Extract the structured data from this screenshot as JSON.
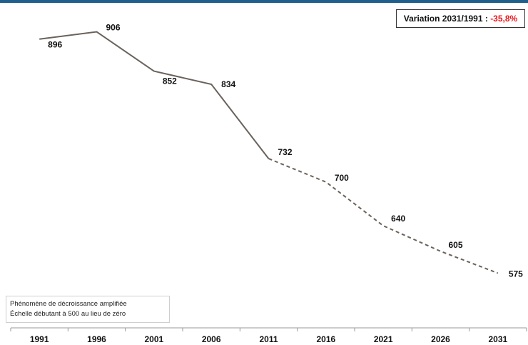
{
  "variation": {
    "label": "Variation 2031/1991 :",
    "value": "-35,8%",
    "value_color": "#e8161b"
  },
  "note": {
    "line1": "Phénomène de décroissance amplifiée",
    "line2": "Échelle débutant à 500 au lieu de zéro"
  },
  "colors": {
    "line": "#6b625c",
    "header_bar": "#1f5f8b"
  },
  "chart_data": {
    "type": "line",
    "categories": [
      "1991",
      "1996",
      "2001",
      "2006",
      "2011",
      "2016",
      "2021",
      "2026",
      "2031"
    ],
    "values": [
      896,
      906,
      852,
      834,
      732,
      700,
      640,
      605,
      575
    ],
    "data_labels": [
      "896",
      "906",
      "852",
      "834",
      "732",
      "700",
      "640",
      "605",
      "575"
    ],
    "solid_until": "2011",
    "dashed_from": "2011",
    "ylim": [
      500,
      930
    ],
    "grid": false,
    "title": "",
    "xlabel": "",
    "ylabel": ""
  }
}
